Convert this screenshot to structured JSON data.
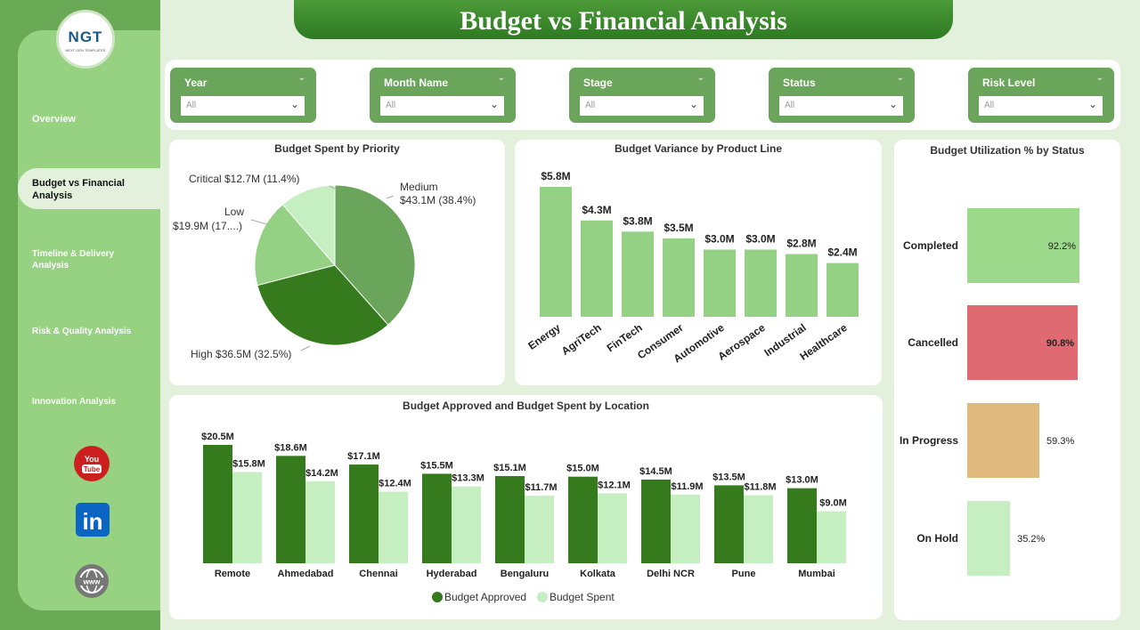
{
  "header": {
    "title": "Budget vs Financial Analysis"
  },
  "logo": {
    "text": "NGT",
    "subtext": "NEXT GEN TEMPLATES"
  },
  "sidebar": {
    "items": [
      {
        "label": "Overview",
        "active": false
      },
      {
        "label": "Budget vs Financial Analysis",
        "active": true
      },
      {
        "label": "Timeline & Delivery Analysis",
        "active": false
      },
      {
        "label": "Risk & Quality Analysis",
        "active": false
      },
      {
        "label": "Innovation Analysis",
        "active": false
      }
    ],
    "social": [
      {
        "name": "youtube-icon",
        "text": "You Tube",
        "color": "#cc1f1f"
      },
      {
        "name": "linkedin-icon",
        "text": "in",
        "color": "#0a66c2"
      },
      {
        "name": "web-icon",
        "text": "www",
        "color": "#777777"
      }
    ]
  },
  "filters": [
    {
      "label": "Year",
      "value": "All"
    },
    {
      "label": "Month Name",
      "value": "All"
    },
    {
      "label": "Stage",
      "value": "All"
    },
    {
      "label": "Status",
      "value": "All"
    },
    {
      "label": "Risk Level",
      "value": "All"
    }
  ],
  "colors": {
    "dark_green": "#357a1c",
    "mid_green": "#6aa55b",
    "light_green": "#94d184",
    "pale_green": "#c6efc1",
    "red": "#df6a72",
    "tan": "#dfb97d"
  },
  "chart_data": [
    {
      "type": "pie",
      "title": "Budget Spent by Priority",
      "slices": [
        {
          "name": "Medium",
          "value": 43.1,
          "label": "$43.1M (38.4%)",
          "percent": 38.4,
          "color": "#6aa55b"
        },
        {
          "name": "High",
          "value": 36.5,
          "label": "$36.5M (32.5%)",
          "percent": 32.5,
          "color": "#357a1c"
        },
        {
          "name": "Low",
          "value": 19.9,
          "label": "$19.9M (17....)",
          "percent": 17.7,
          "color": "#94d184"
        },
        {
          "name": "Critical",
          "value": 12.7,
          "label": "$12.7M (11.4%)",
          "percent": 11.4,
          "color": "#c6efc1"
        }
      ]
    },
    {
      "type": "bar",
      "title": "Budget Variance by Product Line",
      "categories": [
        "Energy",
        "AgriTech",
        "FinTech",
        "Consumer",
        "Automotive",
        "Aerospace",
        "Industrial",
        "Healthcare"
      ],
      "values": [
        5.8,
        4.3,
        3.8,
        3.5,
        3.0,
        3.0,
        2.8,
        2.4
      ],
      "labels": [
        "$5.8M",
        "$4.3M",
        "$3.8M",
        "$3.5M",
        "$3.0M",
        "$3.0M",
        "$2.8M",
        "$2.4M"
      ],
      "ylim": [
        0,
        5.8
      ],
      "color": "#94d184"
    },
    {
      "type": "bar",
      "title": "Budget Utilization % by Status",
      "orientation": "horizontal",
      "categories": [
        "Completed",
        "Cancelled",
        "In Progress",
        "On Hold"
      ],
      "values": [
        92.2,
        90.8,
        59.3,
        35.2
      ],
      "labels": [
        "92.2%",
        "90.8%",
        "59.3%",
        "35.2%"
      ],
      "colors": [
        "#9cd98b",
        "#df6a72",
        "#dfb97d",
        "#c6efc1"
      ]
    },
    {
      "type": "bar",
      "title": "Budget Approved and Budget Spent by Location",
      "categories": [
        "Remote",
        "Ahmedabad",
        "Chennai",
        "Hyderabad",
        "Bengaluru",
        "Kolkata",
        "Delhi NCR",
        "Pune",
        "Mumbai"
      ],
      "series": [
        {
          "name": "Budget Approved",
          "color": "#357a1c",
          "values": [
            20.5,
            18.6,
            17.1,
            15.5,
            15.1,
            15.0,
            14.5,
            13.5,
            13.0
          ],
          "labels": [
            "$20.5M",
            "$18.6M",
            "$17.1M",
            "$15.5M",
            "$15.1M",
            "$15.0M",
            "$14.5M",
            "$13.5M",
            "$13.0M"
          ]
        },
        {
          "name": "Budget Spent",
          "color": "#c6efc1",
          "values": [
            15.8,
            14.2,
            12.4,
            13.3,
            11.7,
            12.1,
            11.9,
            11.8,
            9.0
          ],
          "labels": [
            "$15.8M",
            "$14.2M",
            "$12.4M",
            "$13.3M",
            "$11.7M",
            "$12.1M",
            "$11.9M",
            "$11.8M",
            "$9.0M"
          ]
        }
      ],
      "ylim": [
        0,
        20.5
      ],
      "legend": "bottom-center"
    }
  ]
}
